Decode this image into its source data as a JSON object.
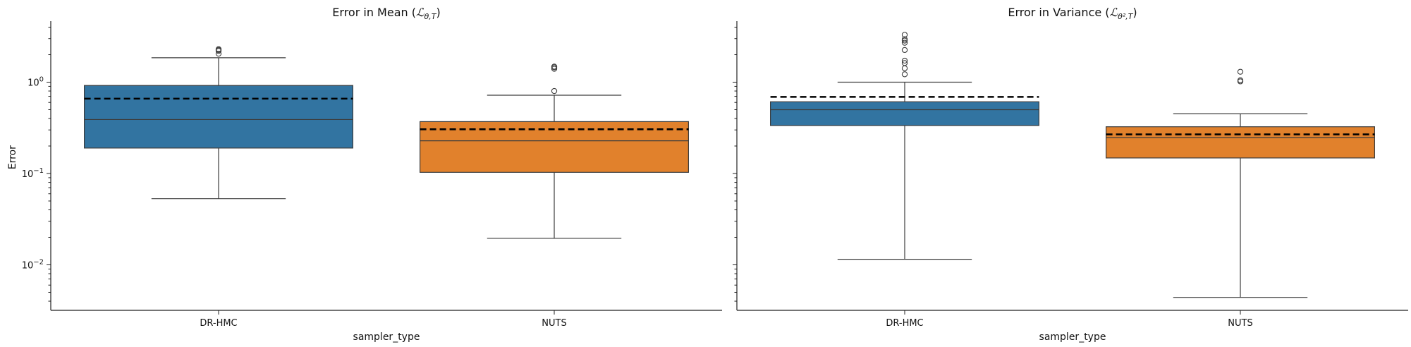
{
  "chart_data": [
    {
      "type": "box",
      "title": "Error in Mean",
      "title_math_sub": "θ,T",
      "xlabel": "sampler_type",
      "ylabel": "Error",
      "yscale": "log",
      "ylim": [
        0.0031,
        4.6
      ],
      "y_ticks": [
        {
          "value": 0.01,
          "mantissa": "10",
          "exponent": "−2"
        },
        {
          "value": 0.1,
          "mantissa": "10",
          "exponent": "−1"
        },
        {
          "value": 1,
          "mantissa": "10",
          "exponent": "0"
        }
      ],
      "categories": [
        "DR-HMC",
        "NUTS"
      ],
      "colors": [
        "#3274a1",
        "#e1812c"
      ],
      "boxes": [
        {
          "category": "DR-HMC",
          "whisker_low": 0.053,
          "q1": 0.19,
          "median": 0.39,
          "q3": 0.92,
          "whisker_high": 1.85,
          "mean": 0.66,
          "outliers": [
            2.05,
            2.2,
            2.25,
            2.3
          ]
        },
        {
          "category": "NUTS",
          "whisker_low": 0.0195,
          "q1": 0.103,
          "median": 0.228,
          "q3": 0.37,
          "whisker_high": 0.72,
          "mean": 0.305,
          "outliers": [
            0.8,
            1.4,
            1.45,
            1.48
          ]
        }
      ],
      "mean_line_style": "dashed black"
    },
    {
      "type": "box",
      "title": "Error in Variance",
      "title_math_sub": "θ²,T",
      "xlabel": "sampler_type",
      "ylabel": "",
      "yscale": "log",
      "ylim": [
        0.0031,
        4.6
      ],
      "y_ticks": [],
      "categories": [
        "DR-HMC",
        "NUTS"
      ],
      "colors": [
        "#3274a1",
        "#e1812c"
      ],
      "boxes": [
        {
          "category": "DR-HMC",
          "whisker_low": 0.0115,
          "q1": 0.335,
          "median": 0.5,
          "q3": 0.61,
          "whisker_high": 1.0,
          "mean": 0.69,
          "outliers": [
            1.22,
            1.42,
            1.62,
            1.72,
            2.25,
            2.7,
            2.85,
            2.95,
            3.3
          ]
        },
        {
          "category": "NUTS",
          "whisker_low": 0.0044,
          "q1": 0.148,
          "median": 0.247,
          "q3": 0.325,
          "whisker_high": 0.45,
          "mean": 0.268,
          "outliers": [
            1.02,
            1.05,
            1.3
          ]
        }
      ],
      "mean_line_style": "dashed black"
    }
  ]
}
